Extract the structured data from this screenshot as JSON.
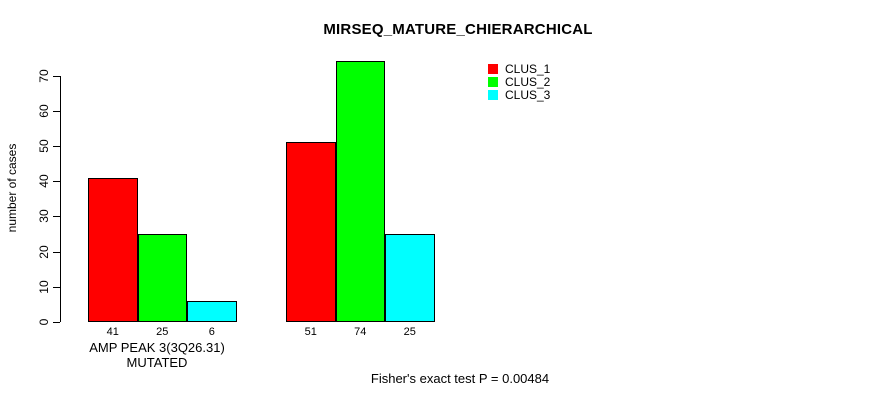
{
  "chart_data": {
    "type": "bar",
    "title": "MIRSEQ_MATURE_CHIERARCHICAL",
    "ylabel": "number of cases",
    "xlabel": "AMP PEAK 3(3Q26.31) MUTATED",
    "annotation": "Fisher's exact test P = 0.00484",
    "categories": [
      "AMP PEAK 3(3Q26.31) MUTATED",
      ""
    ],
    "series": [
      {
        "name": "CLUS_1",
        "color": "#ff0000",
        "values": [
          41,
          51
        ]
      },
      {
        "name": "CLUS_2",
        "color": "#00ff00",
        "values": [
          25,
          74
        ]
      },
      {
        "name": "CLUS_3",
        "color": "#00ffff",
        "values": [
          6,
          25
        ]
      }
    ],
    "bar_value_labels": [
      [
        "41",
        "25",
        "6"
      ],
      [
        "51",
        "74",
        "25"
      ]
    ],
    "y_ticks": [
      0,
      10,
      20,
      30,
      40,
      50,
      60,
      70
    ],
    "ylim": [
      0,
      74
    ],
    "grid": false,
    "legend_position": "top-right",
    "bar_border_color": "#000000",
    "background_color": "#ffffff"
  }
}
